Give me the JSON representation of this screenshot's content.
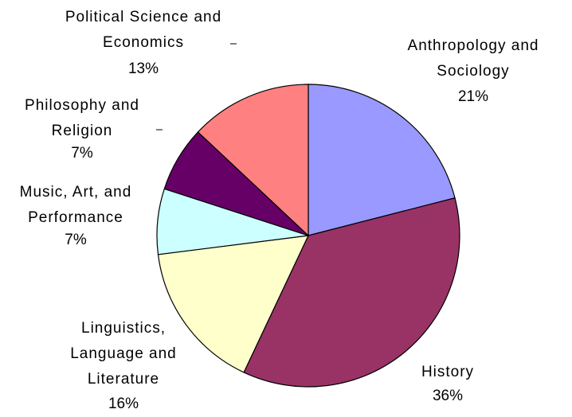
{
  "chart_data": {
    "type": "pie",
    "categories": [
      "Anthropology and Sociology",
      "History",
      "Linguistics, Language and Literature",
      "Music, Art, and Performance",
      "Philosophy and Religion",
      "Political Science and Economics"
    ],
    "values": [
      21,
      36,
      16,
      7,
      7,
      13
    ],
    "value_labels": [
      "21%",
      "36%",
      "16%",
      "7%",
      "7%",
      "13%"
    ],
    "colors": [
      "#9999ff",
      "#993366",
      "#ffffcc",
      "#ccffff",
      "#660066",
      "#ff8080"
    ]
  }
}
